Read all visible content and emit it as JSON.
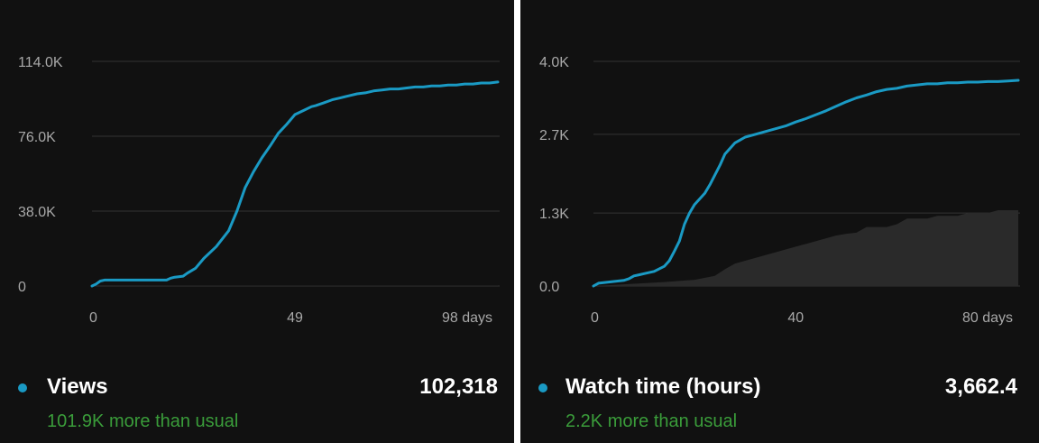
{
  "colors": {
    "line": "#1a9ac4",
    "grid": "#333333",
    "baseline_area": "#2a2a2a",
    "note": "#3a9c3a"
  },
  "panels": [
    {
      "metric": {
        "name": "Views",
        "value": "102,318",
        "note": "101.9K more than usual"
      },
      "chart_data": {
        "type": "line",
        "y_ticks": [
          "114.0K",
          "76.0K",
          "38.0K",
          "0"
        ],
        "y_tick_values": [
          114000,
          76000,
          38000,
          0
        ],
        "x_ticks": [
          "0",
          "49",
          "98 days"
        ],
        "x_tick_values": [
          0,
          49,
          98
        ],
        "xlim": [
          0,
          98
        ],
        "ylim": [
          0,
          114000
        ],
        "series": [
          {
            "values_x": [
              0,
              1,
              2,
              3,
              5,
              8,
              12,
              14,
              16,
              18,
              19,
              20,
              22,
              23,
              25,
              27,
              30,
              33,
              35,
              37,
              39,
              41,
              43,
              45,
              47,
              49,
              51,
              53,
              54,
              56,
              58,
              60,
              62,
              64,
              66,
              68,
              70,
              72,
              74,
              76,
              78,
              80,
              82,
              84,
              86,
              88,
              90,
              92,
              94,
              96,
              98
            ],
            "values_y": [
              0,
              1000,
              2500,
              3000,
              3000,
              3000,
              3000,
              3000,
              3000,
              3000,
              4000,
              4500,
              5000,
              6500,
              9000,
              14000,
              20000,
              28000,
              38000,
              50000,
              58000,
              65000,
              71000,
              77500,
              82000,
              87000,
              89000,
              91000,
              91500,
              93000,
              94500,
              95500,
              96500,
              97500,
              98000,
              99000,
              99500,
              100000,
              100000,
              100500,
              101000,
              101000,
              101500,
              101500,
              102000,
              102000,
              102500,
              102500,
              103000,
              103000,
              103500
            ]
          }
        ],
        "baseline": {
          "values_x": [
            0,
            21,
            98
          ],
          "values_y": [
            0,
            200,
            200
          ]
        }
      }
    },
    {
      "metric": {
        "name": "Watch time (hours)",
        "value": "3,662.4",
        "note": "2.2K more than usual"
      },
      "chart_data": {
        "type": "line",
        "y_ticks": [
          "4.0K",
          "2.7K",
          "1.3K",
          "0.0"
        ],
        "y_tick_values": [
          4000,
          2700,
          1300,
          0
        ],
        "x_ticks": [
          "0",
          "40",
          "80 days"
        ],
        "x_tick_values": [
          0,
          40,
          80
        ],
        "xlim": [
          0,
          84
        ],
        "ylim": [
          0,
          4000
        ],
        "series": [
          {
            "values_x": [
              0,
              1,
              3,
              5,
              6,
              7,
              8,
              9,
              10,
              12,
              14,
              15,
              16,
              17,
              18,
              19,
              20,
              22,
              23,
              25,
              26,
              27,
              28,
              29,
              30,
              32,
              34,
              36,
              38,
              40,
              42,
              44,
              46,
              48,
              50,
              52,
              54,
              56,
              58,
              60,
              62,
              64,
              66,
              68,
              70,
              72,
              74,
              76,
              78,
              80,
              82,
              84
            ],
            "values_y": [
              0,
              50,
              70,
              90,
              100,
              130,
              180,
              200,
              220,
              260,
              350,
              450,
              620,
              800,
              1100,
              1300,
              1450,
              1650,
              1800,
              2150,
              2350,
              2450,
              2550,
              2600,
              2650,
              2700,
              2750,
              2800,
              2850,
              2920,
              2980,
              3050,
              3120,
              3200,
              3280,
              3350,
              3400,
              3460,
              3500,
              3520,
              3560,
              3580,
              3600,
              3600,
              3620,
              3620,
              3630,
              3630,
              3640,
              3640,
              3650,
              3662
            ]
          }
        ],
        "baseline": {
          "values_x": [
            0,
            8,
            14,
            20,
            24,
            26,
            28,
            30,
            32,
            34,
            36,
            38,
            40,
            42,
            44,
            46,
            48,
            50,
            52,
            54,
            56,
            58,
            60,
            62,
            64,
            66,
            68,
            70,
            72,
            74,
            76,
            78,
            80,
            82,
            84
          ],
          "values_y": [
            0,
            40,
            70,
            110,
            180,
            300,
            400,
            450,
            500,
            550,
            600,
            650,
            700,
            750,
            800,
            850,
            900,
            930,
            950,
            1050,
            1050,
            1050,
            1100,
            1200,
            1200,
            1200,
            1250,
            1250,
            1250,
            1300,
            1300,
            1300,
            1350,
            1350,
            1350
          ]
        }
      }
    }
  ]
}
